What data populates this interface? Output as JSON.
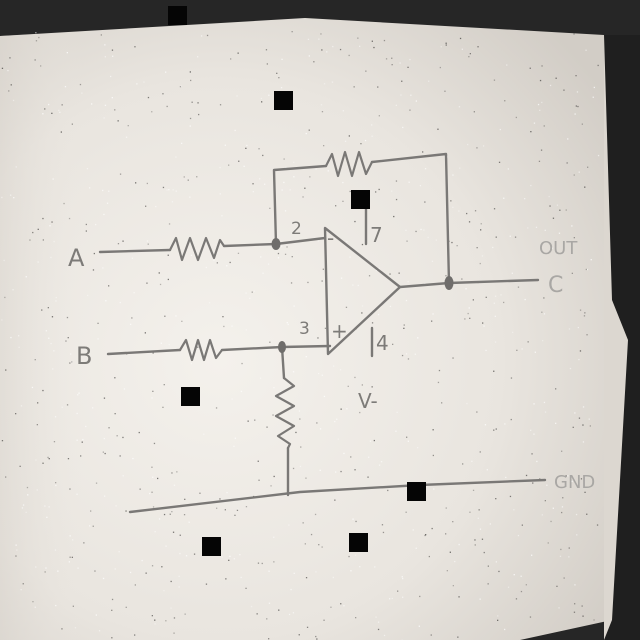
{
  "diagram": {
    "inputs": {
      "a_label": "A",
      "b_label": "B"
    },
    "pins": {
      "inverting_pin": "2",
      "noninverting_pin": "3",
      "supply_pos_pin": "7",
      "supply_neg_pin": "4"
    },
    "opamp_signs": {
      "minus": "-",
      "plus": "+"
    },
    "supply_label": "V-",
    "output": {
      "out_label": "OUT",
      "node_label": "C"
    },
    "ground_label": "GND"
  },
  "colors": {
    "pencil": "#7a7876",
    "paper": "#efebe6",
    "background": "#262626",
    "marker": "#050505"
  }
}
